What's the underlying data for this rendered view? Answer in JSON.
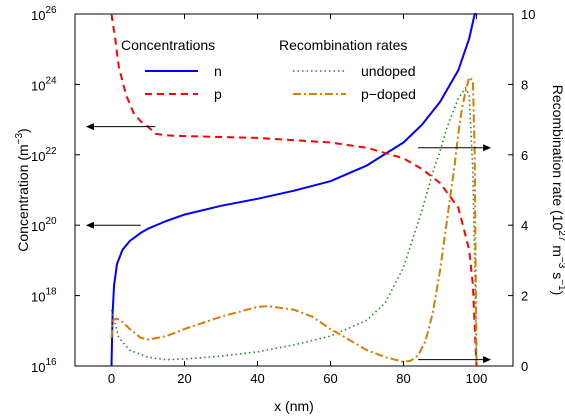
{
  "chart_data": {
    "type": "line",
    "xlabel": "x (nm)",
    "ylabel_left": "Concentration (m",
    "ylabel_left_exp": "−3",
    "ylabel_left_close": ")",
    "ylabel_right": "Recombination rate (10",
    "ylabel_right_exp1": "27",
    "ylabel_right_mid": " m",
    "ylabel_right_exp2": "−3",
    "ylabel_right_s": " s",
    "ylabel_right_exp3": "−1",
    "ylabel_right_close": ")",
    "xlim": [
      -10,
      110
    ],
    "ylim_left_log10": [
      16,
      26
    ],
    "ylim_right": [
      0,
      10
    ],
    "x_ticks": [
      0,
      20,
      40,
      60,
      80,
      100
    ],
    "y_left_ticks_log10": [
      16,
      18,
      20,
      22,
      24,
      26
    ],
    "y_left_tick_labels": [
      {
        "base": "10",
        "exp": "16"
      },
      {
        "base": "10",
        "exp": "18"
      },
      {
        "base": "10",
        "exp": "20"
      },
      {
        "base": "10",
        "exp": "22"
      },
      {
        "base": "10",
        "exp": "24"
      },
      {
        "base": "10",
        "exp": "26"
      }
    ],
    "y_right_ticks": [
      0,
      2,
      4,
      6,
      8,
      10
    ],
    "legend": {
      "group1_title": "Concentrations",
      "group2_title": "Recombination rates",
      "entries": [
        {
          "series": "n",
          "label": "n"
        },
        {
          "series": "p",
          "label": "p"
        },
        {
          "series": "undoped",
          "label": "undoped"
        },
        {
          "series": "p-doped",
          "label": "p−doped"
        }
      ]
    },
    "series": [
      {
        "name": "n",
        "axis": "left",
        "color": "#0000ff",
        "dash": "solid",
        "x": [
          0,
          0.3,
          0.7,
          1.5,
          3,
          5,
          8,
          10,
          15,
          20,
          30,
          40,
          50,
          60,
          70,
          80,
          85,
          90,
          95,
          98,
          99.5,
          100
        ],
        "y_log10": [
          16,
          17.5,
          18.3,
          18.9,
          19.3,
          19.55,
          19.78,
          19.9,
          20.12,
          20.3,
          20.55,
          20.75,
          20.98,
          21.25,
          21.7,
          22.35,
          22.85,
          23.5,
          24.4,
          25.3,
          26.0,
          26.3
        ]
      },
      {
        "name": "p",
        "axis": "left",
        "color": "#ff0000",
        "dash": "dashed",
        "x": [
          0,
          1,
          2,
          4,
          6,
          8,
          10,
          12,
          15,
          20,
          40,
          60,
          70,
          80,
          85,
          90,
          95,
          98,
          99,
          100
        ],
        "y_log10": [
          26.3,
          25.3,
          24.5,
          23.7,
          23.2,
          22.95,
          22.8,
          22.6,
          22.55,
          22.53,
          22.48,
          22.35,
          22.2,
          21.9,
          21.6,
          21.2,
          20.5,
          19.3,
          18.3,
          16
        ]
      },
      {
        "name": "undoped",
        "axis": "right",
        "color": "#228b22",
        "dash": "dotted",
        "x": [
          0,
          2,
          5,
          10,
          15,
          20,
          30,
          40,
          50,
          60,
          70,
          75,
          80,
          85,
          88,
          90,
          92,
          95,
          97,
          98,
          99,
          99.5,
          100
        ],
        "y": [
          1.6,
          0.8,
          0.45,
          0.25,
          0.18,
          0.2,
          0.28,
          0.4,
          0.6,
          0.85,
          1.3,
          1.8,
          2.8,
          4.4,
          5.5,
          6.1,
          6.8,
          7.6,
          7.9,
          7.7,
          5.5,
          3.0,
          0.2
        ]
      },
      {
        "name": "p-doped",
        "axis": "right",
        "color": "#dd7a00",
        "dash": "dashdot",
        "x": [
          0,
          0.5,
          1.5,
          3,
          5,
          8,
          10,
          15,
          20,
          30,
          40,
          43,
          50,
          55,
          60,
          65,
          70,
          75,
          80,
          82,
          84,
          86,
          88,
          90,
          92,
          94,
          95,
          96,
          97,
          98,
          99,
          99.5,
          100
        ],
        "y": [
          0.8,
          1.3,
          1.35,
          1.25,
          1.05,
          0.8,
          0.75,
          0.85,
          1.05,
          1.4,
          1.68,
          1.7,
          1.6,
          1.4,
          1.05,
          0.75,
          0.45,
          0.25,
          0.12,
          0.15,
          0.3,
          0.7,
          1.5,
          2.7,
          4.2,
          5.7,
          6.6,
          7.3,
          7.8,
          8.2,
          8.1,
          6.0,
          0.1
        ]
      }
    ],
    "arrows": [
      {
        "axis": "left",
        "from_x": 12,
        "to_x": -7,
        "y_log10": 22.8
      },
      {
        "axis": "left",
        "from_x": 8,
        "to_x": -7,
        "y_log10": 20.0
      },
      {
        "axis": "right",
        "from_x": 84,
        "to_x": 104,
        "y": 6.2
      },
      {
        "axis": "right",
        "from_x": 84,
        "to_x": 104,
        "y": 0.18
      }
    ]
  }
}
